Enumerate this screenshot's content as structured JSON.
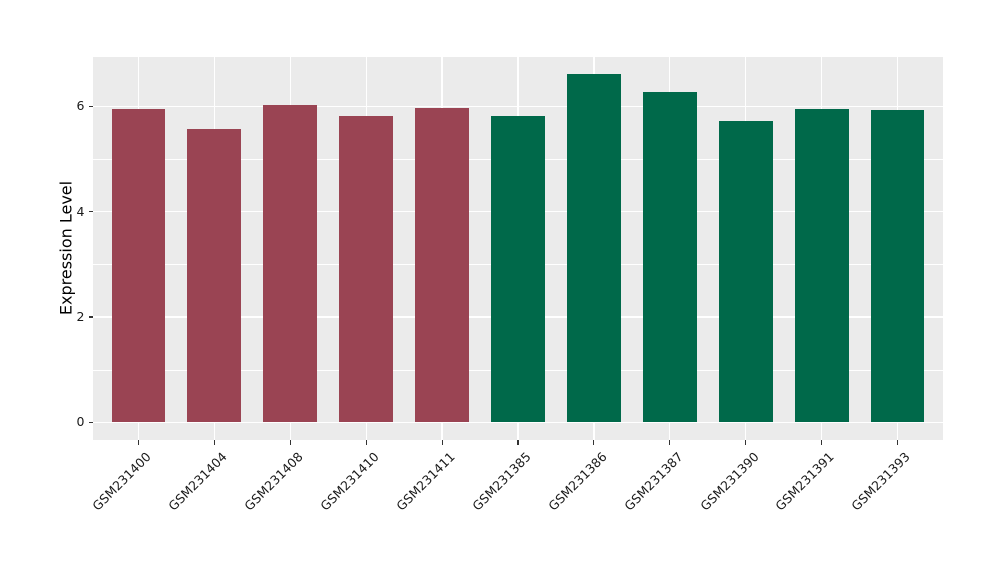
{
  "chart_data": {
    "type": "bar",
    "title": "",
    "xlabel": "",
    "ylabel": "Expression Level",
    "categories": [
      "GSM231400",
      "GSM231404",
      "GSM231408",
      "GSM231410",
      "GSM231411",
      "GSM231385",
      "GSM231386",
      "GSM231387",
      "GSM231390",
      "GSM231391",
      "GSM231393"
    ],
    "values": [
      5.94,
      5.57,
      6.03,
      5.81,
      5.97,
      5.81,
      6.61,
      6.27,
      5.73,
      5.95,
      5.93
    ],
    "bar_colors": [
      "#9A4453",
      "#9A4453",
      "#9A4453",
      "#9A4453",
      "#9A4453",
      "#00694A",
      "#00694A",
      "#00694A",
      "#00694A",
      "#00694A",
      "#00694A"
    ],
    "y_ticks": [
      "0",
      "2",
      "4",
      "6"
    ],
    "y_minor_gridlines": [
      1,
      3,
      5
    ],
    "ylim": [
      -0.34,
      6.94
    ],
    "x_tick_angle": 45,
    "legend": "none",
    "grid": true,
    "colors": {
      "bar_group_left": "#9A4453",
      "bar_group_right": "#00694A",
      "panel_bg": "#EBEBEB",
      "grid": "#FFFFFF",
      "tick": "#333333",
      "text": "#1A1A1A",
      "background": "#FFFFFF"
    }
  }
}
